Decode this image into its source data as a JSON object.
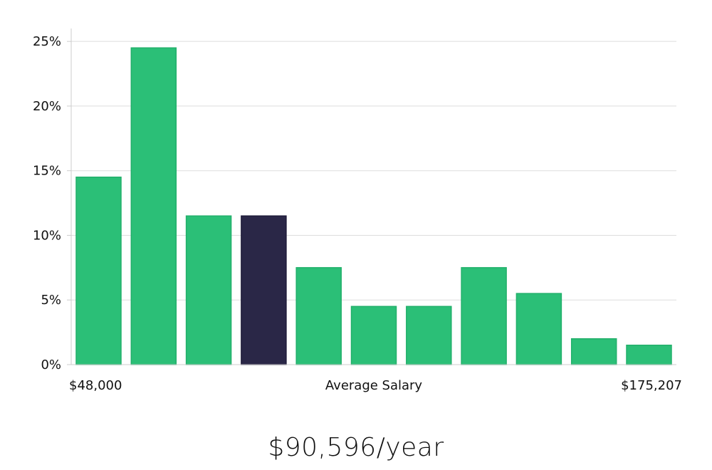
{
  "chart_data": {
    "type": "bar",
    "categories": [
      "",
      "",
      "",
      "",
      "",
      "",
      "",
      "",
      "",
      "",
      ""
    ],
    "values": [
      14.5,
      24.5,
      11.5,
      11.5,
      7.5,
      4.5,
      4.5,
      7.5,
      5.5,
      2.0,
      1.5
    ],
    "highlight_index": 3,
    "ylim": [
      0,
      26
    ],
    "yticks": [
      0,
      5,
      10,
      15,
      20,
      25
    ],
    "ytick_labels": [
      "0%",
      "5%",
      "10%",
      "15%",
      "20%",
      "25%"
    ],
    "x_min_label": "$48,000",
    "x_center_label": "Average Salary",
    "x_max_label": "$175,207",
    "grid": true,
    "colors": {
      "bar": "#2bbf77",
      "bar_stroke": "#22b06b",
      "highlight": "#2a2747",
      "grid": "#dddddd",
      "axis": "#cccccc"
    }
  },
  "summary": {
    "salary_text": "$90,596/year"
  }
}
